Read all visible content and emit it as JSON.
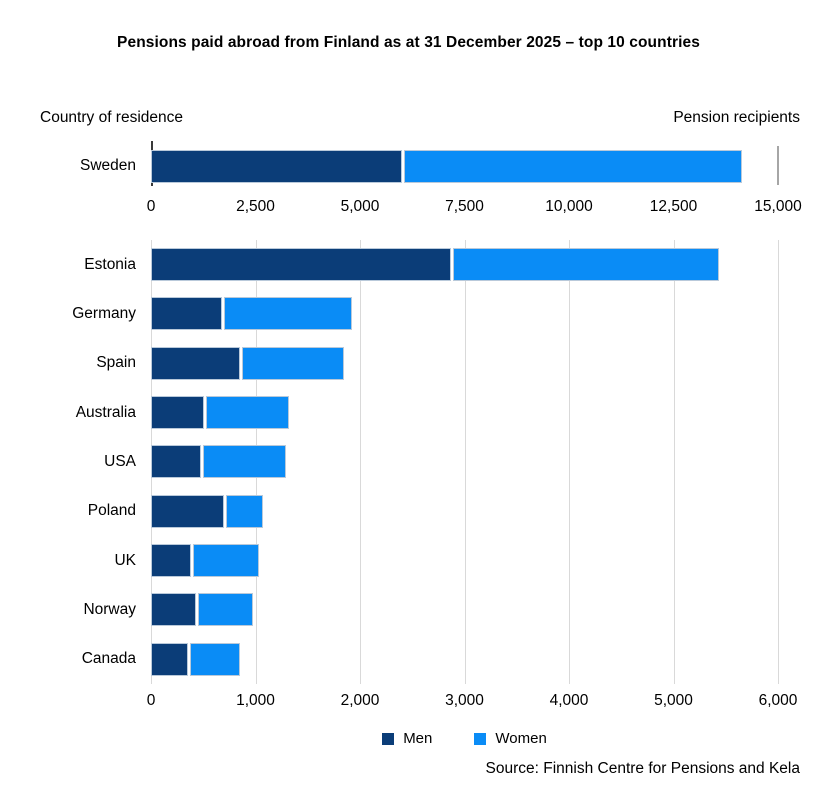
{
  "title": "Pensions paid abroad from Finland as at 31 December 2025 – top 10 countries",
  "header": {
    "left": "Country of residence",
    "right": "Pension recipients"
  },
  "colors": {
    "men": "#0b3d78",
    "women": "#0a8cf6",
    "gridline": "#d9d9d9",
    "axis_line": "#3a3a3a",
    "right_tick": "#a6a6a6"
  },
  "legend": [
    {
      "label": "Men",
      "color": "#0b3d78"
    },
    {
      "label": "Women",
      "color": "#0a8cf6"
    }
  ],
  "source": "Source: Finnish Centre for Pensions and Kela",
  "chart_data": [
    {
      "type": "bar",
      "stacked": true,
      "orientation": "horizontal",
      "title": "",
      "categories": [
        "Sweden"
      ],
      "series": [
        {
          "name": "Men",
          "color": "#0b3d78",
          "values": [
            6000
          ]
        },
        {
          "name": "Women",
          "color": "#0a8cf6",
          "values": [
            8100
          ]
        }
      ],
      "xlim": [
        0,
        15000
      ],
      "ticks": [
        0,
        2500,
        5000,
        7500,
        10000,
        12500,
        15000
      ],
      "tick_labels": [
        "0",
        "2,500",
        "5,000",
        "7,500",
        "10,000",
        "12,500",
        "15,000"
      ],
      "grid": false
    },
    {
      "type": "bar",
      "stacked": true,
      "orientation": "horizontal",
      "title": "",
      "categories": [
        "Estonia",
        "Germany",
        "Spain",
        "Australia",
        "USA",
        "Poland",
        "UK",
        "Norway",
        "Canada"
      ],
      "series": [
        {
          "name": "Men",
          "color": "#0b3d78",
          "values": [
            2870,
            680,
            850,
            510,
            480,
            700,
            380,
            430,
            350
          ]
        },
        {
          "name": "Women",
          "color": "#0a8cf6",
          "values": [
            2550,
            1220,
            980,
            790,
            790,
            350,
            630,
            530,
            480
          ]
        }
      ],
      "xlim": [
        0,
        6000
      ],
      "ticks": [
        0,
        1000,
        2000,
        3000,
        4000,
        5000,
        6000
      ],
      "tick_labels": [
        "0",
        "1,000",
        "2,000",
        "3,000",
        "4,000",
        "5,000",
        "6,000"
      ],
      "grid": true
    }
  ]
}
